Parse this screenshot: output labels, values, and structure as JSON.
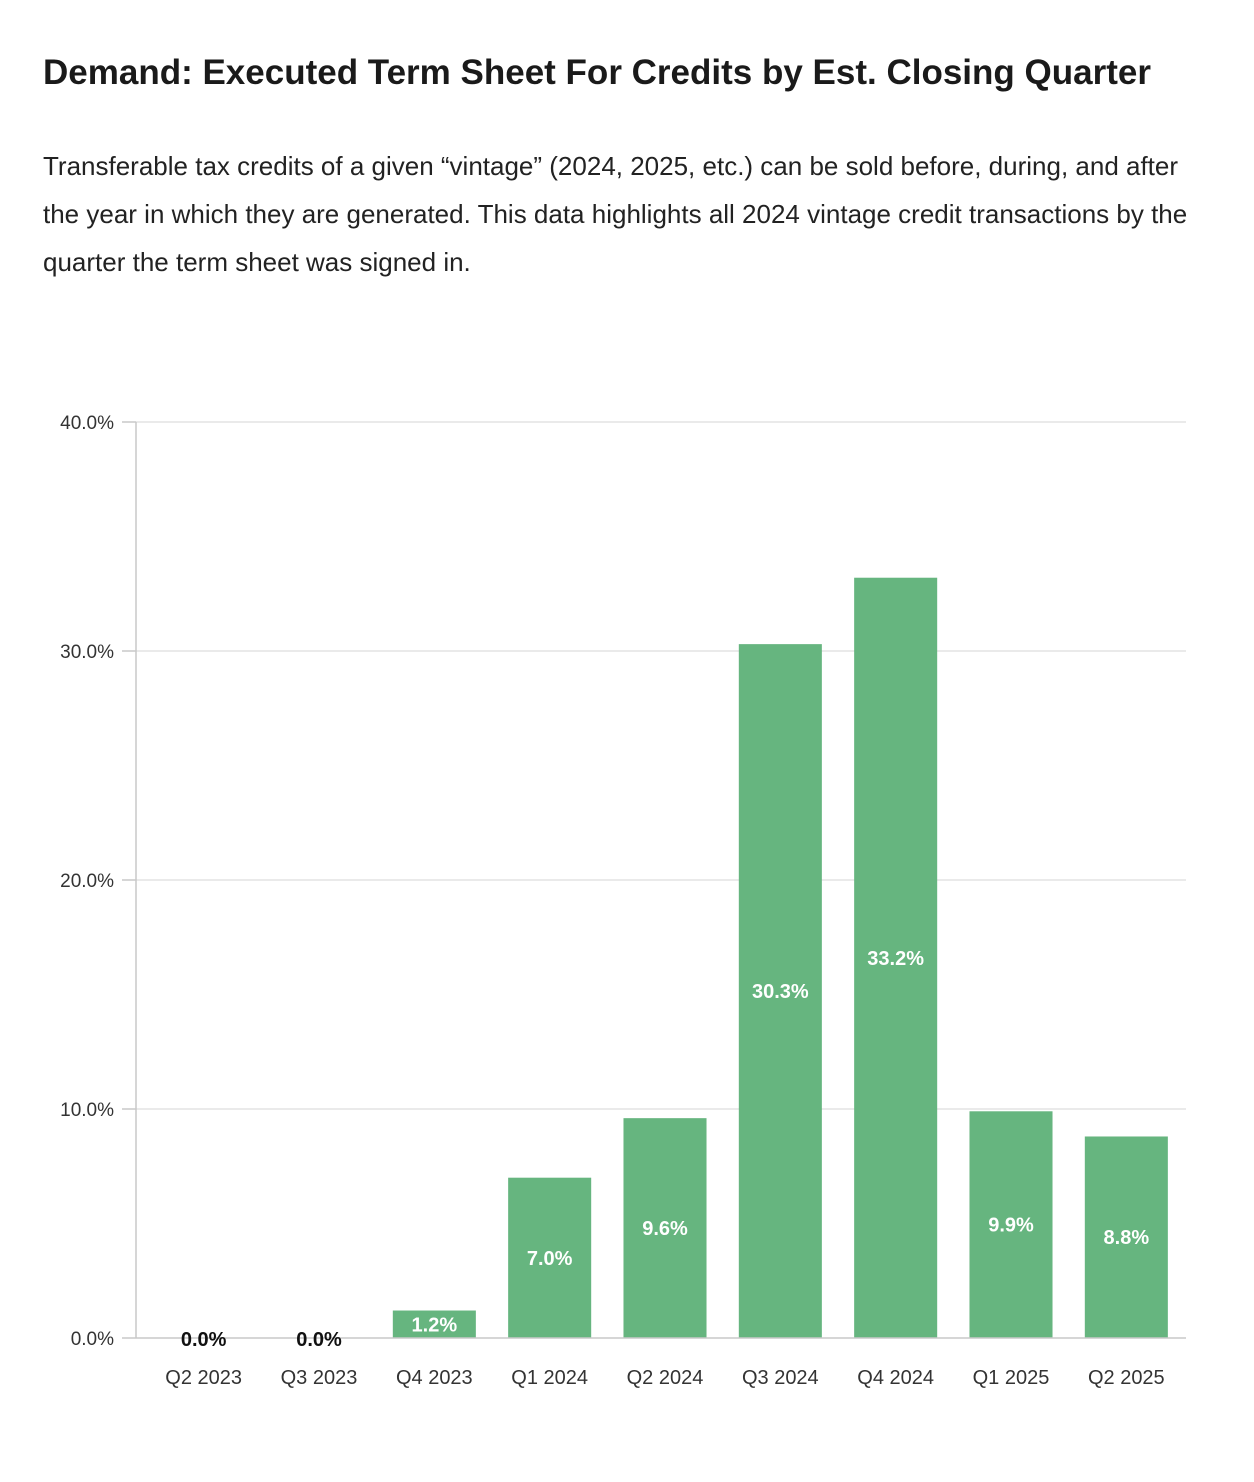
{
  "title": "Demand: Executed Term Sheet For Credits by Est. Closing Quarter",
  "description": "Transferable tax credits of a given “vintage” (2024, 2025, etc.) can be sold before, during, and after the year in which they are generated. This data highlights all 2024 vintage credit transactions by the quarter the term sheet was signed in.",
  "colors": {
    "bar": "#66b57f",
    "grid": "#e3e3e3",
    "axis": "#c8c8c8",
    "label_inside": "#ffffff",
    "label_outside": "#111111"
  },
  "chart_data": {
    "type": "bar",
    "categories": [
      "Q2 2023",
      "Q3 2023",
      "Q4 2023",
      "Q1 2024",
      "Q2 2024",
      "Q3 2024",
      "Q4 2024",
      "Q1 2025",
      "Q2 2025"
    ],
    "values": [
      0.0,
      0.0,
      1.2,
      7.0,
      9.6,
      30.3,
      33.2,
      9.9,
      8.8
    ],
    "data_labels": [
      "0.0%",
      "0.0%",
      "1.2%",
      "7.0%",
      "9.6%",
      "30.3%",
      "33.2%",
      "9.9%",
      "8.8%"
    ],
    "y_ticks": [
      0,
      10,
      20,
      30,
      40
    ],
    "y_tick_labels": [
      "0.0%",
      "10.0%",
      "20.0%",
      "30.0%",
      "40.0%"
    ],
    "ylim": [
      0,
      40
    ],
    "grid": true,
    "legend": "none"
  }
}
